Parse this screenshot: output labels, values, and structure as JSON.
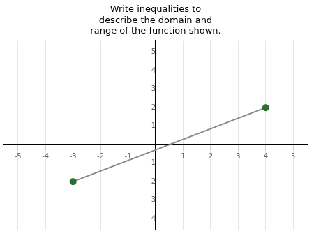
{
  "chart_data": {
    "type": "line",
    "title": [
      "Write inequalities to",
      "describe the domain and",
      "range of the function shown."
    ],
    "x": [
      -3,
      4
    ],
    "values": [
      -2,
      2
    ],
    "color": "#888888",
    "colors": [
      "#2d6e2d",
      "#2d6e2d"
    ],
    "marker": "circle",
    "xlim": [
      -5.5,
      5.5
    ],
    "ylim": [
      -4.6,
      5.6
    ],
    "xticks": [
      -5,
      -4,
      -3,
      -2,
      -1,
      1,
      2,
      3,
      4,
      5
    ],
    "yticks": [
      -4,
      -3,
      -2,
      -1,
      1,
      2,
      3,
      4,
      5
    ],
    "grid": true
  }
}
